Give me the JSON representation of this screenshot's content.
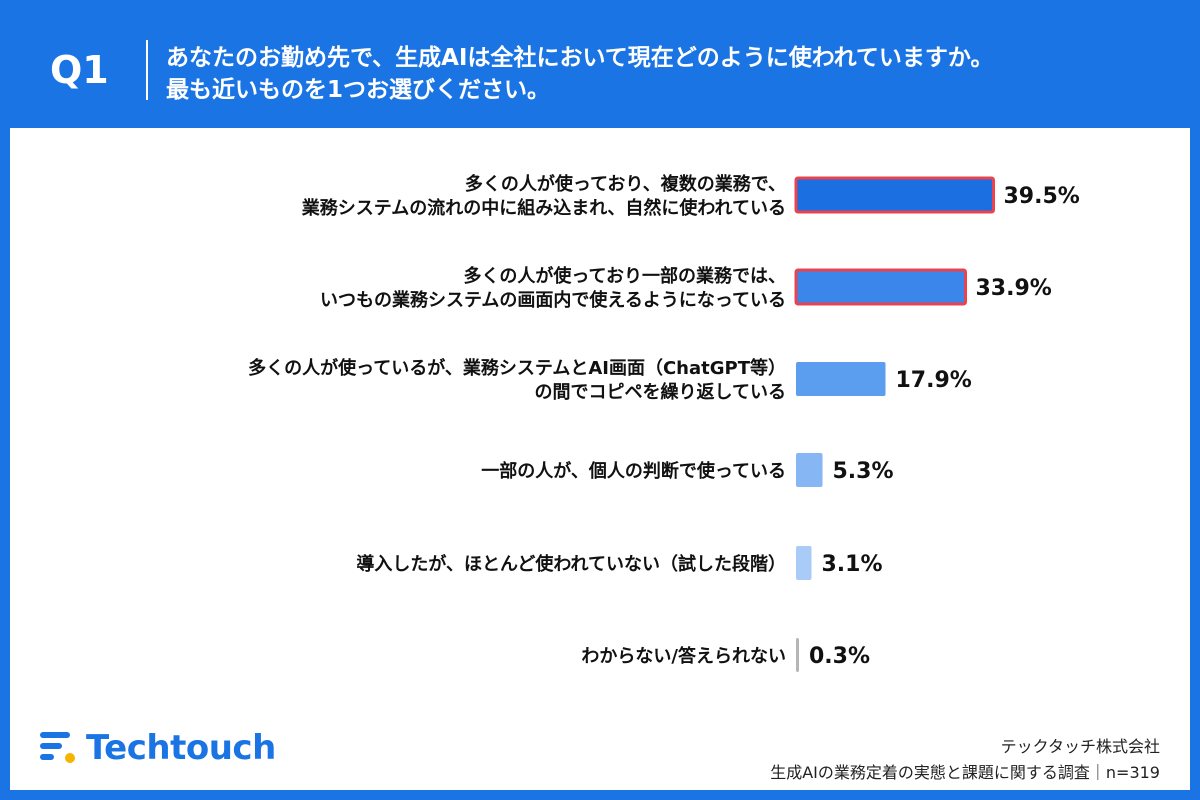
{
  "header": {
    "q_label": "Q1",
    "question_line1": "あなたのお勤め先で、生成AIは全社において現在どのように使われていますか。",
    "question_line2": "最も近いものを1つお選びください。"
  },
  "chart_data": {
    "type": "bar",
    "orientation": "horizontal",
    "unit": "%",
    "categories": [
      [
        "多くの人が使っており、複数の業務で、",
        "業務システムの流れの中に組み込まれ、自然に使われている"
      ],
      [
        "多くの人が使っており一部の業務では、",
        "いつもの業務システムの画面内で使えるようになっている"
      ],
      [
        "多くの人が使っているが、業務システムとAI画面（ChatGPT等）",
        "の間でコピペを繰り返している"
      ],
      [
        "一部の人が、個人の判断で使っている"
      ],
      [
        "導入したが、ほとんど使われていない（試した段階）"
      ],
      [
        "わからない/答えられない"
      ]
    ],
    "values": [
      39.5,
      33.9,
      17.9,
      5.3,
      3.1,
      0.3
    ],
    "value_labels": [
      "39.5%",
      "33.9%",
      "17.9%",
      "5.3%",
      "3.1%",
      "0.3%"
    ],
    "bar_colors": [
      "#1b6fe0",
      "#3a86ea",
      "#5b9def",
      "#86b6f3",
      "#a9cbf7",
      "#b5b5b5"
    ],
    "highlighted": [
      true,
      true,
      false,
      false,
      false,
      false
    ],
    "highlight_color": "#e8434f"
  },
  "logo": {
    "text": "Techtouch",
    "icon": "techtouch-logo-icon"
  },
  "footer": {
    "company": "テックタッチ株式会社",
    "survey": "生成AIの業務定着の実態と課題に関する調査｜n=319"
  }
}
